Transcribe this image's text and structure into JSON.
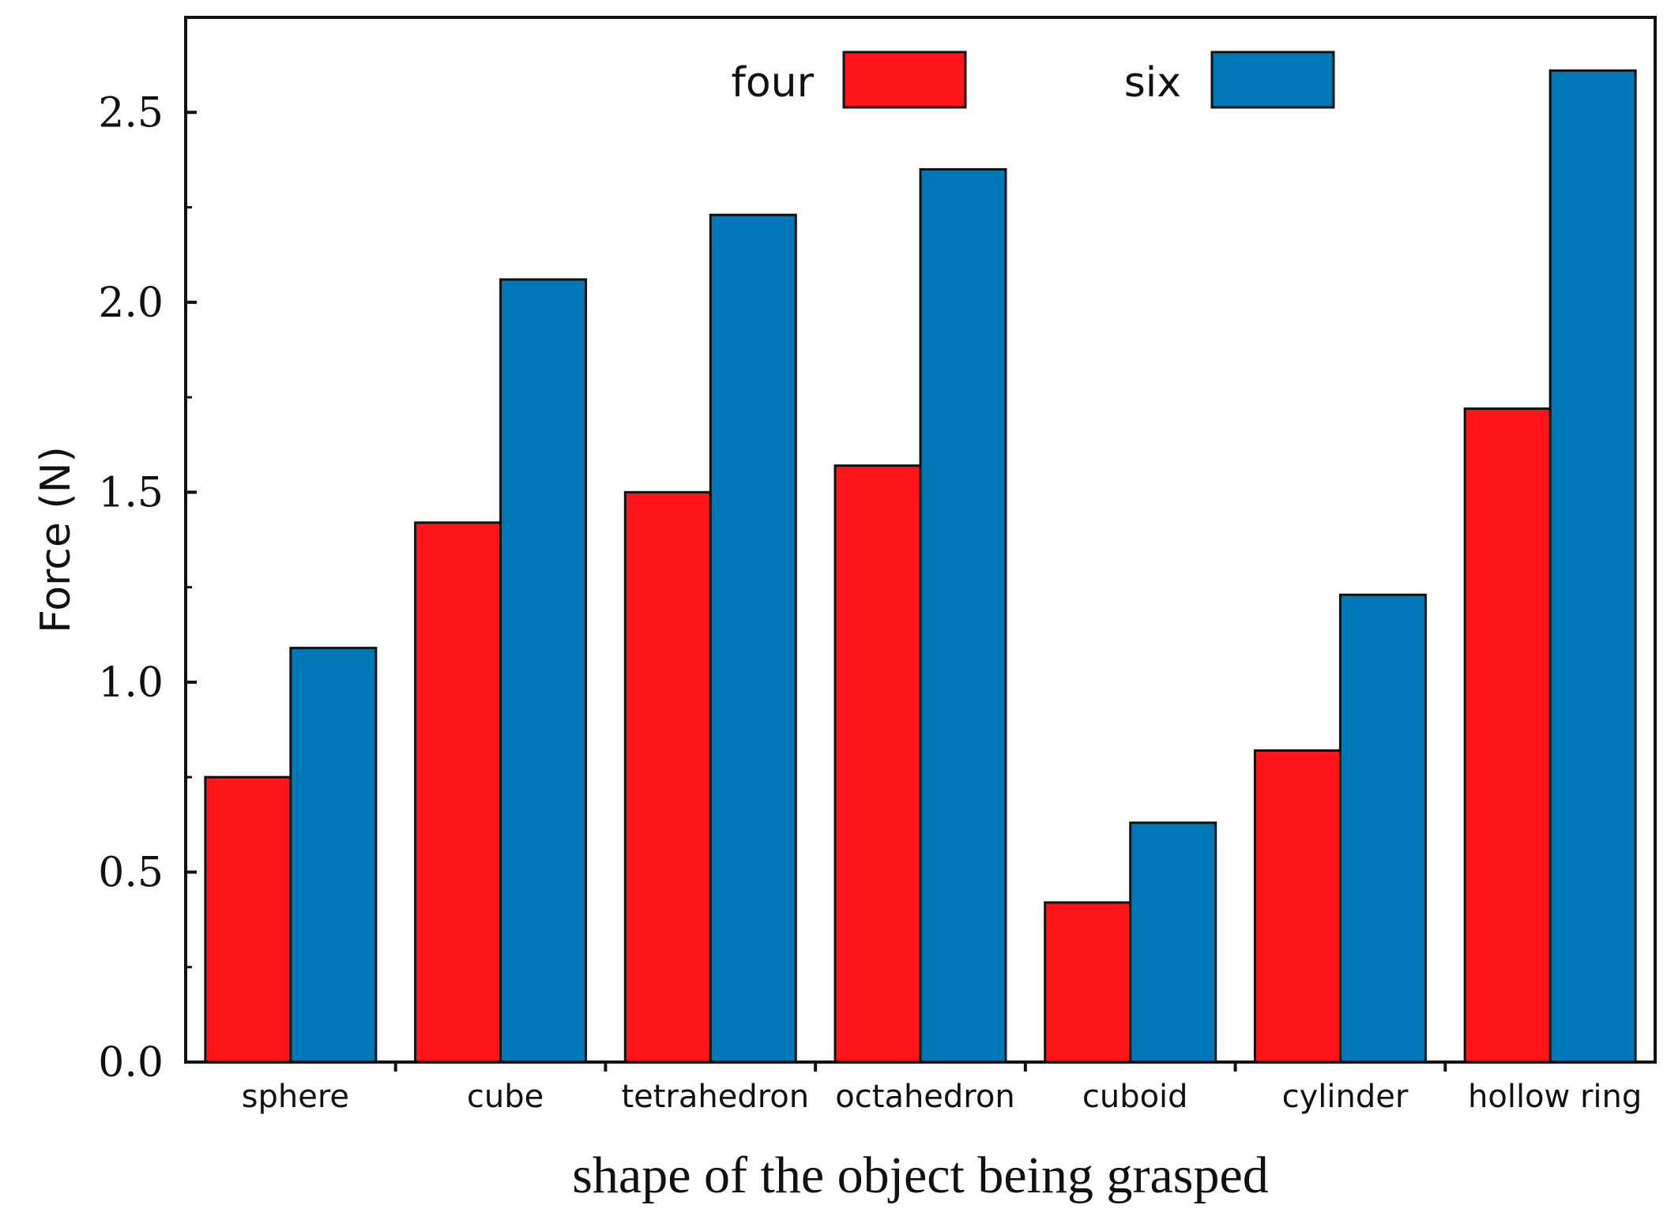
{
  "chart_data": {
    "type": "bar",
    "title": "",
    "xlabel": "shape of the object being grasped",
    "ylabel": "Force (N)",
    "ylim": [
      0,
      2.75
    ],
    "yticks": [
      0.0,
      0.5,
      1.0,
      1.5,
      2.0,
      2.5
    ],
    "ytick_labels": [
      "0.0",
      "0.5",
      "1.0",
      "1.5",
      "2.0",
      "2.5"
    ],
    "categories": [
      "sphere",
      "cube",
      "tetrahedron",
      "octahedron",
      "cuboid",
      "cylinder",
      "hollow ring"
    ],
    "series": [
      {
        "name": "four",
        "color": "#ff1419",
        "values": [
          0.75,
          1.42,
          1.5,
          1.57,
          0.42,
          0.82,
          1.72
        ]
      },
      {
        "name": "six",
        "color": "#0078b8",
        "values": [
          1.09,
          2.06,
          2.23,
          2.35,
          0.63,
          1.23,
          2.61
        ]
      }
    ],
    "legend": {
      "position": "top",
      "entries": [
        "four",
        "six"
      ]
    },
    "grid": false
  }
}
